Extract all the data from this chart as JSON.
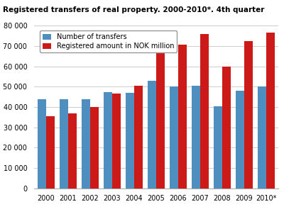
{
  "title": "Registered transfers of real property. 2000-2010*. 4th quarter",
  "years": [
    "2000",
    "2001",
    "2002",
    "2003",
    "2004",
    "2005",
    "2006",
    "2007",
    "2008",
    "2009",
    "2010*"
  ],
  "num_transfers": [
    44000,
    43800,
    43700,
    47200,
    47000,
    53000,
    50000,
    50500,
    40200,
    48000,
    50200
  ],
  "nok_million": [
    35500,
    36800,
    40000,
    46500,
    50500,
    68500,
    70500,
    76000,
    60000,
    72500,
    76500
  ],
  "bar_color_blue": "#4f8fc0",
  "bar_color_red": "#cc1a18",
  "legend_blue": "Number of transfers",
  "legend_red": "Registered amount in NOK million",
  "ylim": [
    0,
    80000
  ],
  "yticks": [
    0,
    10000,
    20000,
    30000,
    40000,
    50000,
    60000,
    70000,
    80000
  ],
  "background_color": "#ffffff",
  "grid_color": "#cccccc",
  "title_fontsize": 7.5,
  "legend_fontsize": 7.0,
  "tick_fontsize": 7.0
}
